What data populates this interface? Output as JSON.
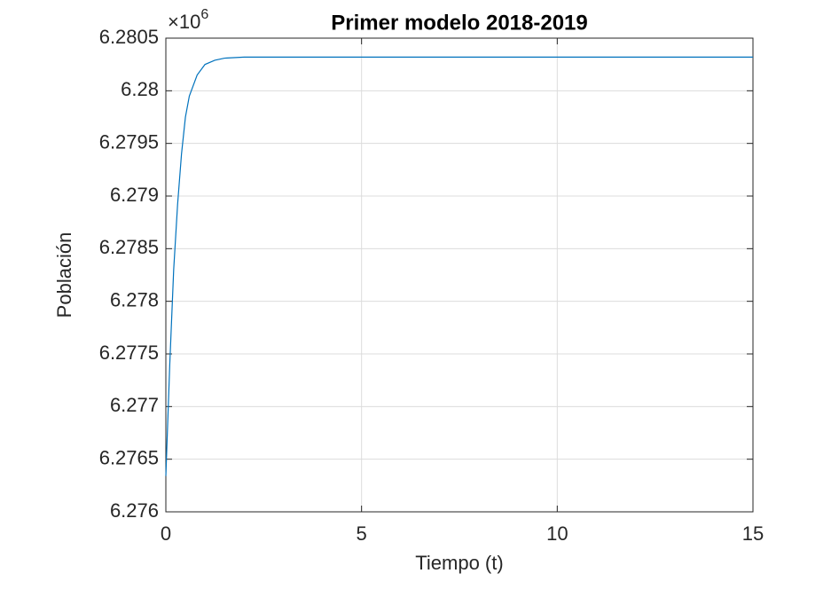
{
  "chart_data": {
    "type": "line",
    "title": "Primer modelo 2018-2019",
    "x_label": "Tiempo (t)",
    "y_label": "Población",
    "y_multiplier": {
      "base": "×10",
      "power": "6"
    },
    "x": [
      0,
      0.1,
      0.2,
      0.3,
      0.4,
      0.5,
      0.6,
      0.8,
      1.0,
      1.25,
      1.5,
      2,
      3,
      5,
      10,
      15
    ],
    "series": [
      {
        "color": "#0072bd",
        "values": [
          6.27634,
          6.2774,
          6.2783,
          6.27892,
          6.2794,
          6.27975,
          6.27995,
          6.28015,
          6.28025,
          6.28029,
          6.28031,
          6.28032,
          6.28032,
          6.28032,
          6.28032,
          6.28032
        ]
      }
    ],
    "xlim": [
      0,
      15
    ],
    "xticks": [
      0,
      5,
      10,
      15
    ],
    "ylim": [
      6.276,
      6.2805
    ],
    "yticks": [
      6.276,
      6.2765,
      6.277,
      6.2775,
      6.278,
      6.2785,
      6.279,
      6.2795,
      6.28,
      6.2805
    ],
    "grid": true
  }
}
